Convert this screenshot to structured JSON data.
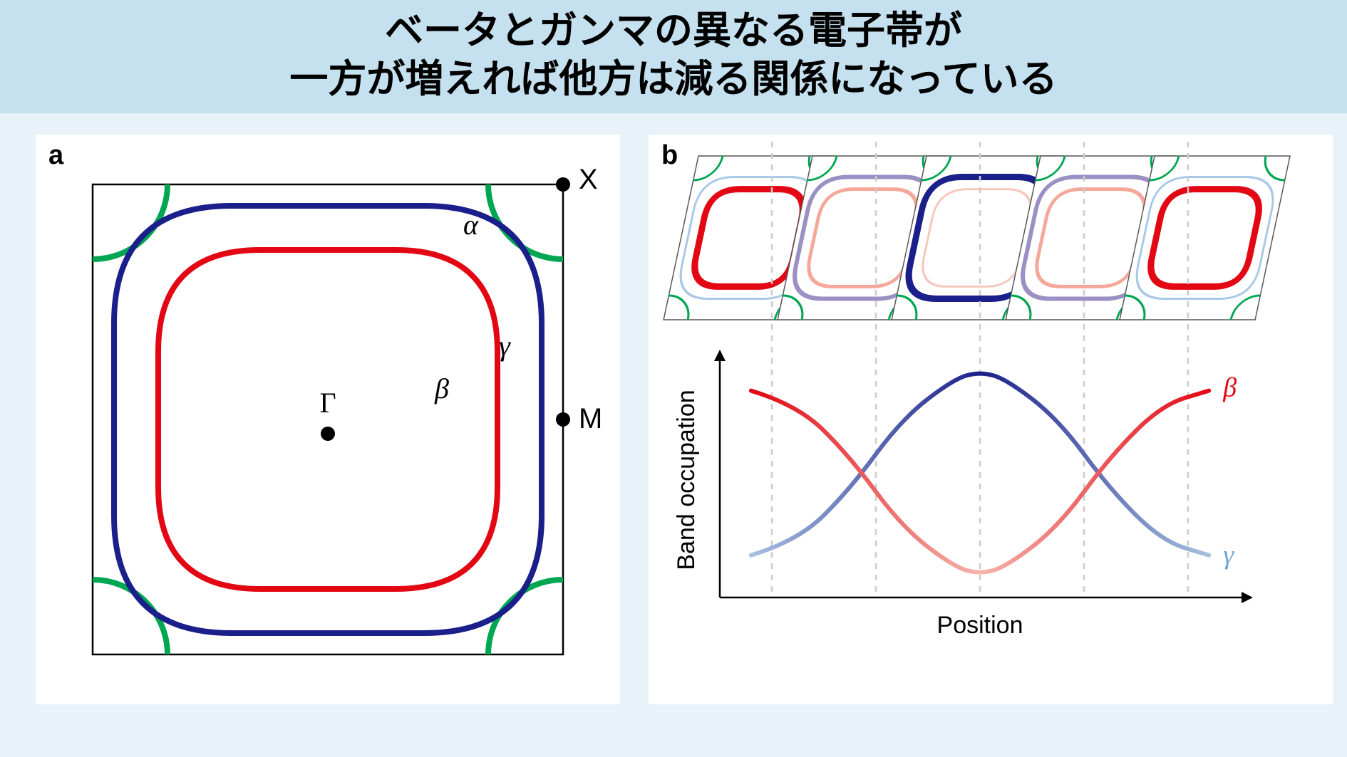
{
  "title": {
    "line1": "ベータとガンマの異なる電子帯が",
    "line2": "一方が増えれば他方は減る関係になっている"
  },
  "panel_a": {
    "label": "a",
    "box_color": "#000000",
    "box_stroke": 2.5,
    "bg": "#ffffff",
    "alpha": {
      "color": "#00a651",
      "stroke": 8,
      "label": "α",
      "label_fontsize": 40
    },
    "gamma": {
      "color": "#1b1f8a",
      "stroke": 8,
      "label": "γ",
      "label_fontsize": 40
    },
    "beta": {
      "color": "#e30613",
      "stroke": 8,
      "label": "β",
      "label_fontsize": 40
    },
    "points": {
      "X": {
        "label": "X",
        "fontsize": 40
      },
      "M": {
        "label": "M",
        "fontsize": 40
      },
      "Gamma": {
        "label": "Γ",
        "fontsize": 40
      }
    },
    "point_radius": 10
  },
  "panel_b": {
    "label": "b",
    "tiles": {
      "count": 5,
      "box_color": "#555555",
      "box_stroke": 1.5,
      "alpha_color": "#00a651",
      "states": [
        {
          "beta_color": "#e30613",
          "beta_w": 9,
          "gamma_color": "#a8c8e8",
          "gamma_w": 3
        },
        {
          "beta_color": "#f4a89a",
          "beta_w": 5,
          "gamma_color": "#9b8fc4",
          "gamma_w": 6
        },
        {
          "beta_color": "#f6c7bd",
          "beta_w": 3,
          "gamma_color": "#1b1f8a",
          "gamma_w": 9
        },
        {
          "beta_color": "#f4a89a",
          "beta_w": 5,
          "gamma_color": "#9b8fc4",
          "gamma_w": 6
        },
        {
          "beta_color": "#e30613",
          "beta_w": 9,
          "gamma_color": "#a8c8e8",
          "gamma_w": 3
        }
      ]
    },
    "chart": {
      "axis_color": "#000000",
      "axis_stroke": 2.5,
      "grid_color": "#cccccc",
      "grid_dash": "8,8",
      "ylabel": "Band occupation",
      "xlabel": "Position",
      "label_fontsize": 34,
      "curve_label_fontsize": 38,
      "beta": {
        "label": "β",
        "color_hi": "#e30613",
        "color_lo": "#f4b5ab",
        "stroke": 6,
        "points": [
          [
            0.06,
            0.88
          ],
          [
            0.15,
            0.82
          ],
          [
            0.25,
            0.6
          ],
          [
            0.35,
            0.3
          ],
          [
            0.45,
            0.13
          ],
          [
            0.5,
            0.1
          ],
          [
            0.55,
            0.13
          ],
          [
            0.65,
            0.3
          ],
          [
            0.75,
            0.6
          ],
          [
            0.85,
            0.82
          ],
          [
            0.94,
            0.88
          ]
        ]
      },
      "gamma": {
        "label": "γ",
        "color_hi": "#1b1f8a",
        "color_lo": "#a8c0e0",
        "stroke": 6,
        "points": [
          [
            0.06,
            0.18
          ],
          [
            0.15,
            0.24
          ],
          [
            0.25,
            0.46
          ],
          [
            0.35,
            0.76
          ],
          [
            0.45,
            0.93
          ],
          [
            0.5,
            0.96
          ],
          [
            0.55,
            0.93
          ],
          [
            0.65,
            0.76
          ],
          [
            0.75,
            0.46
          ],
          [
            0.85,
            0.24
          ],
          [
            0.94,
            0.18
          ]
        ]
      },
      "xlim": [
        0,
        1
      ],
      "ylim": [
        0,
        1
      ],
      "vlines_x": [
        0.1,
        0.3,
        0.5,
        0.7,
        0.9
      ]
    }
  }
}
